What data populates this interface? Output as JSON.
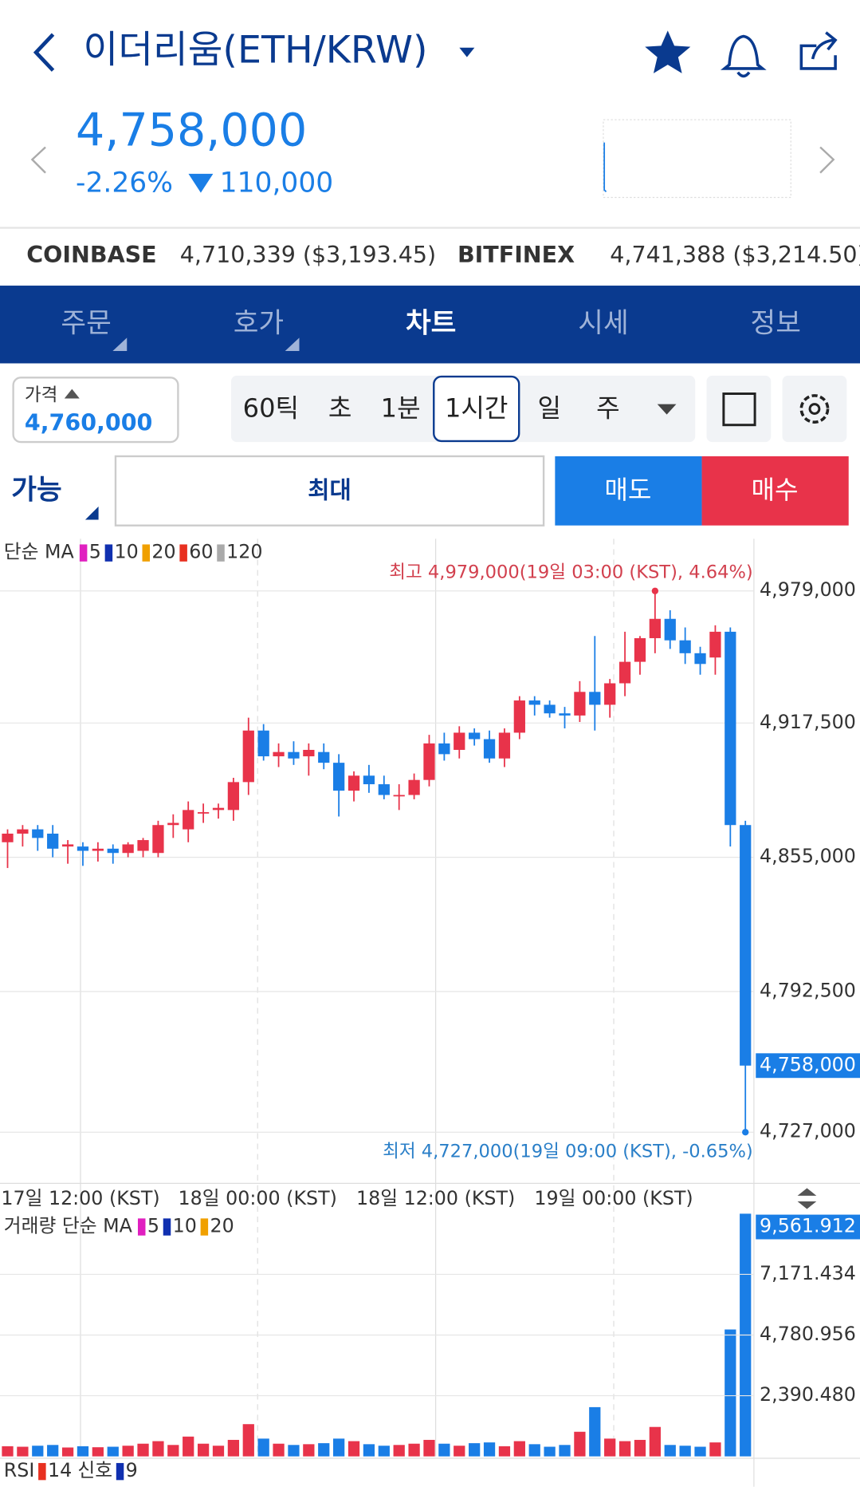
{
  "header": {
    "title": "이더리움(ETH/KRW)",
    "price": "4,758,000",
    "change_pct": "-2.26%",
    "change_abs": "110,000"
  },
  "exchanges": [
    {
      "name": "COINBASE",
      "value": "4,710,339 ($3,193.45)"
    },
    {
      "name": "BITFINEX",
      "value": "4,741,388 ($3,214.50)"
    }
  ],
  "tabs": [
    "주문",
    "호가",
    "차트",
    "시세",
    "정보"
  ],
  "order_bar": {
    "price_label": "가격",
    "price": "4,760,000",
    "timeframes": [
      "60틱",
      "초",
      "1분",
      "1시간",
      "일",
      "주"
    ]
  },
  "trade_bar": {
    "available": "가능",
    "max": "최대",
    "sell": "매도",
    "buy": "매수"
  },
  "ma_legend": {
    "title": "단순 MA",
    "periods": [
      "5",
      "10",
      "20",
      "60",
      "120"
    ]
  },
  "volume_legend": {
    "title": "거래량 단순 MA",
    "periods": [
      "5",
      "10",
      "20"
    ]
  },
  "rsi_legend": {
    "title": "RSI",
    "period": "14",
    "signal_title": "신호",
    "signal": "9"
  },
  "chart_data": {
    "type": "candlestick",
    "high_note": "최고 4,979,000(19일 03:00 (KST), 4.64%)",
    "low_note": "최저 4,727,000(19일 09:00 (KST), -0.65%)",
    "x_labels": [
      "17일 12:00 (KST)",
      "18일 00:00 (KST)",
      "18일 12:00 (KST)",
      "19일 00:00 (KST)"
    ],
    "ylim": [
      4704500,
      5003300
    ],
    "yticks": [
      {
        "value": 4727000,
        "label": "4,727,000"
      },
      {
        "value": 4792500,
        "label": "4,792,500"
      },
      {
        "value": 4855000,
        "label": "4,855,000"
      },
      {
        "value": 4917500,
        "label": "4,917,500"
      },
      {
        "value": 4979000,
        "label": "4,979,000"
      }
    ],
    "current_price": {
      "value": 4758000,
      "label": "4,758,000"
    },
    "up_color": "#e8334a",
    "down_color": "#1a7ee6",
    "open": [
      4862000,
      4866000,
      4868000,
      4866000,
      4860000,
      4860000,
      4858000,
      4859000,
      4857000,
      4858000,
      4857000,
      4870000,
      4868000,
      4876000,
      4877000,
      4877000,
      4890000,
      4914000,
      4902000,
      4904000,
      4902000,
      4904000,
      4899000,
      4886000,
      4893000,
      4889000,
      4884000,
      4884000,
      4891000,
      4908000,
      4905000,
      4913000,
      4910000,
      4901000,
      4913000,
      4928000,
      4926000,
      4922000,
      4921000,
      4932000,
      4926000,
      4936000,
      4946000,
      4957000,
      4966000,
      4956000,
      4950000,
      4948000,
      4960000,
      4870000
    ],
    "high": [
      4868000,
      4870000,
      4870000,
      4870000,
      4863000,
      4862000,
      4862000,
      4861000,
      4862000,
      4864000,
      4872000,
      4875000,
      4881000,
      4880000,
      4880000,
      4892000,
      4920000,
      4917000,
      4908000,
      4909000,
      4908000,
      4908000,
      4903000,
      4895000,
      4898000,
      4893000,
      4889000,
      4894000,
      4912000,
      4913000,
      4916000,
      4915000,
      4914000,
      4915000,
      4930000,
      4930000,
      4928000,
      4925000,
      4937000,
      4958000,
      4938000,
      4960000,
      4958000,
      4979000,
      4970000,
      4962000,
      4953000,
      4963000,
      4962000,
      4872000
    ],
    "low": [
      4850000,
      4860000,
      4858000,
      4855000,
      4852000,
      4851000,
      4853000,
      4852000,
      4855000,
      4855000,
      4855000,
      4864000,
      4862000,
      4871000,
      4873000,
      4872000,
      4884000,
      4900000,
      4897000,
      4898000,
      4893000,
      4896000,
      4874000,
      4881000,
      4885000,
      4882000,
      4877000,
      4882000,
      4888000,
      4900000,
      4901000,
      4907000,
      4899000,
      4897000,
      4910000,
      4921000,
      4920000,
      4915000,
      4918000,
      4914000,
      4920000,
      4930000,
      4940000,
      4950000,
      4952000,
      4945000,
      4940000,
      4940000,
      4860000,
      4727000
    ],
    "close": [
      4866000,
      4868000,
      4864000,
      4859000,
      4861000,
      4858000,
      4859000,
      4857000,
      4861000,
      4863000,
      4870000,
      4871000,
      4877000,
      4876000,
      4878000,
      4890000,
      4914000,
      4902000,
      4904000,
      4901000,
      4905000,
      4899000,
      4886000,
      4893000,
      4889000,
      4884000,
      4884000,
      4891000,
      4908000,
      4903000,
      4913000,
      4910000,
      4901000,
      4913000,
      4928000,
      4926000,
      4922000,
      4921000,
      4932000,
      4926000,
      4936000,
      4946000,
      4957000,
      4966000,
      4956000,
      4950000,
      4945000,
      4960000,
      4870000,
      4758000
    ],
    "volume": {
      "values": [
        400,
        380,
        420,
        450,
        350,
        400,
        360,
        380,
        420,
        500,
        600,
        450,
        780,
        500,
        420,
        650,
        1270,
        700,
        500,
        450,
        480,
        520,
        700,
        600,
        480,
        420,
        450,
        500,
        650,
        500,
        420,
        520,
        550,
        400,
        600,
        480,
        380,
        450,
        970,
        1940,
        700,
        600,
        650,
        1160,
        450,
        420,
        380,
        550,
        5000,
        9561.912
      ],
      "ylim": [
        0,
        9561.912
      ],
      "yticks": [
        {
          "value": 2390.48,
          "label": "2,390.480"
        },
        {
          "value": 4780.956,
          "label": "4,780.956"
        },
        {
          "value": 7171.434,
          "label": "7,171.434"
        }
      ],
      "current": {
        "value": 9561.912,
        "label": "9,561.912"
      }
    }
  }
}
